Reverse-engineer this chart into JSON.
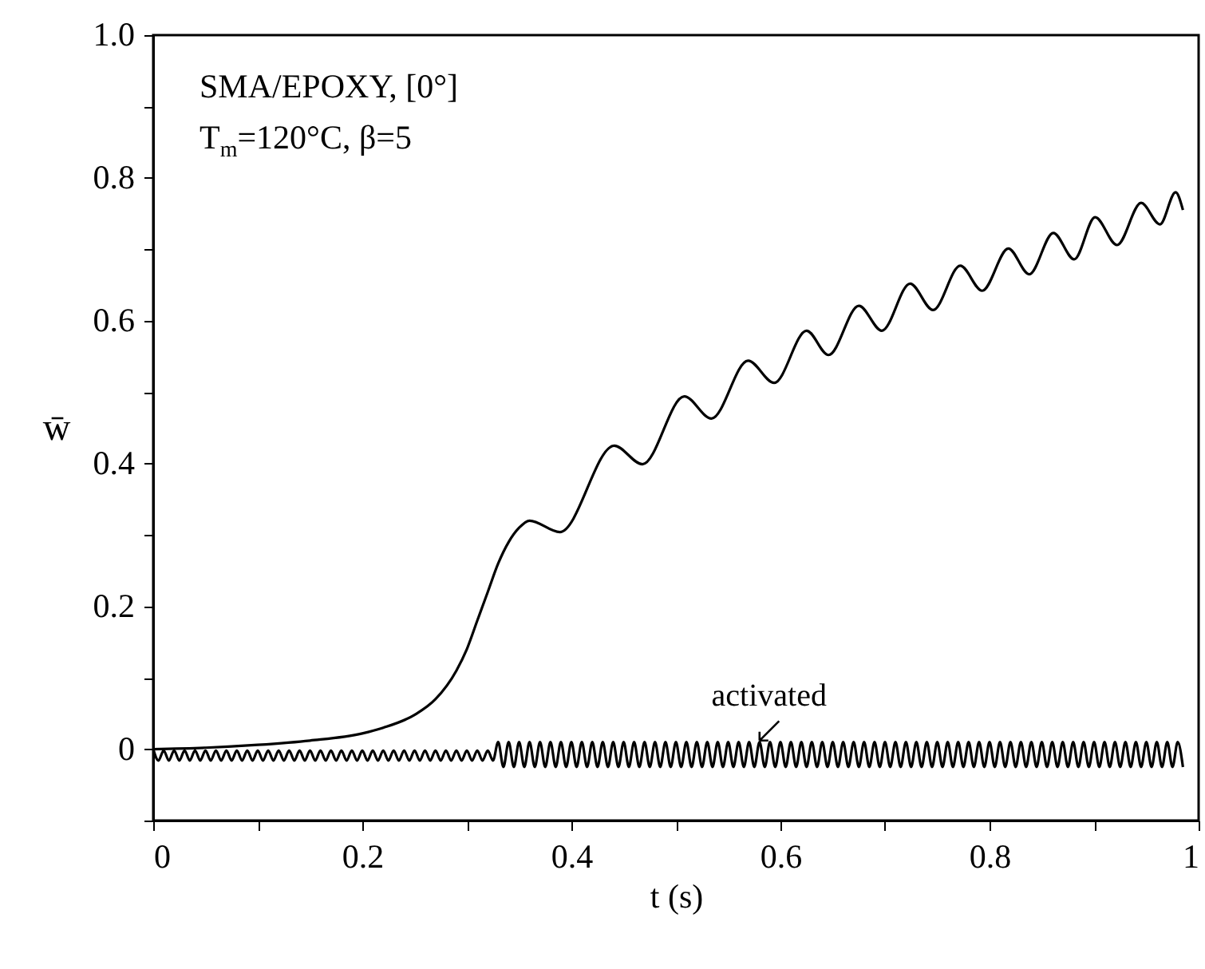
{
  "chart_data": {
    "type": "line",
    "title": "SMA/EPOXY,  [0°]",
    "subtitle": "T$_{m}$=120°C,  β=5",
    "xlabel": "t (s)",
    "ylabel": "w̄",
    "xlim": [
      0,
      1
    ],
    "ylim": [
      -0.1,
      1.0
    ],
    "xticks": [
      0,
      {
        "value": 0.1,
        "label": null
      },
      0.2,
      {
        "value": 0.3,
        "label": null
      },
      0.4,
      {
        "value": 0.5,
        "label": null
      },
      0.6,
      {
        "value": 0.7,
        "label": null
      },
      0.8,
      {
        "value": 0.9,
        "label": null
      },
      1
    ],
    "yticks": [
      {
        "value": -0.1,
        "label": null
      },
      0,
      {
        "value": 0.1,
        "label": null
      },
      0.2,
      {
        "value": 0.3,
        "label": null
      },
      0.4,
      {
        "value": 0.5,
        "label": null
      },
      0.6,
      {
        "value": 0.7,
        "label": null
      },
      0.8,
      {
        "value": 0.9,
        "label": null
      },
      {
        "value": 1.0,
        "label": "1.0"
      }
    ],
    "annotations": [
      {
        "text": "activated",
        "x": 0.58,
        "y": 0.012
      }
    ],
    "series": [
      {
        "color": "#000000",
        "x": [
          0,
          0.05,
          0.1,
          0.15,
          0.2,
          0.22,
          0.25,
          0.27,
          0.29,
          0.3,
          0.31,
          0.32,
          0.33,
          0.34,
          0.35,
          0.36,
          0.389,
          0.441,
          0.468,
          0.508,
          0.534,
          0.569,
          0.594,
          0.625,
          0.646,
          0.675,
          0.697,
          0.724,
          0.746,
          0.772,
          0.793,
          0.818,
          0.838,
          0.861,
          0.881,
          0.901,
          0.922,
          0.945,
          0.963,
          0.978,
          0.985
        ],
        "values": [
          0,
          0.002,
          0.006,
          0.012,
          0.022,
          0.03,
          0.048,
          0.07,
          0.11,
          0.14,
          0.18,
          0.22,
          0.26,
          0.29,
          0.31,
          0.32,
          0.304,
          0.425,
          0.399,
          0.494,
          0.463,
          0.544,
          0.513,
          0.586,
          0.552,
          0.621,
          0.586,
          0.652,
          0.615,
          0.677,
          0.642,
          0.701,
          0.665,
          0.723,
          0.686,
          0.745,
          0.706,
          0.765,
          0.735,
          0.78,
          0.755
        ]
      },
      {
        "color": "#000000",
        "x": [
          0,
          0.005,
          0.01,
          0.015,
          0.02,
          0.025,
          0.03,
          0.035,
          0.04,
          0.045,
          0.05,
          0.055,
          0.06,
          0.065,
          0.07,
          0.075,
          0.08,
          0.085,
          0.09,
          0.095,
          0.1,
          0.105,
          0.11,
          0.115,
          0.12,
          0.125,
          0.13,
          0.135,
          0.14,
          0.145,
          0.15,
          0.155,
          0.16,
          0.165,
          0.17,
          0.175,
          0.18,
          0.185,
          0.19,
          0.195,
          0.2,
          0.205,
          0.21,
          0.215,
          0.22,
          0.225,
          0.23,
          0.235,
          0.24,
          0.245,
          0.25,
          0.255,
          0.26,
          0.265,
          0.27,
          0.275,
          0.28,
          0.285,
          0.29,
          0.295,
          0.3,
          0.305,
          0.31,
          0.315,
          0.32,
          0.325,
          0.33,
          0.335,
          0.34,
          0.345,
          0.35,
          0.355,
          0.36,
          0.365,
          0.37,
          0.375,
          0.38,
          0.385,
          0.39,
          0.395,
          0.4,
          0.405,
          0.41,
          0.415,
          0.42,
          0.425,
          0.43,
          0.435,
          0.44,
          0.445,
          0.45,
          0.455,
          0.46,
          0.465,
          0.47,
          0.475,
          0.48,
          0.485,
          0.49,
          0.495,
          0.5,
          0.505,
          0.51,
          0.515,
          0.52,
          0.525,
          0.53,
          0.535,
          0.54,
          0.545,
          0.55,
          0.555,
          0.56,
          0.565,
          0.57,
          0.575,
          0.58,
          0.585,
          0.59,
          0.595,
          0.6,
          0.605,
          0.61,
          0.615,
          0.62,
          0.625,
          0.63,
          0.635,
          0.64,
          0.645,
          0.65,
          0.655,
          0.66,
          0.665,
          0.67,
          0.675,
          0.68,
          0.685,
          0.69,
          0.695,
          0.7,
          0.705,
          0.71,
          0.715,
          0.72,
          0.725,
          0.73,
          0.735,
          0.74,
          0.745,
          0.75,
          0.755,
          0.76,
          0.765,
          0.77,
          0.775,
          0.78,
          0.785,
          0.79,
          0.795,
          0.8,
          0.805,
          0.81,
          0.815,
          0.82,
          0.825,
          0.83,
          0.835,
          0.84,
          0.845,
          0.85,
          0.855,
          0.86,
          0.865,
          0.87,
          0.875,
          0.88,
          0.885,
          0.89,
          0.895,
          0.9,
          0.905,
          0.91,
          0.915,
          0.92,
          0.925,
          0.93,
          0.935,
          0.94,
          0.945,
          0.95,
          0.955,
          0.96,
          0.965,
          0.97,
          0.975,
          0.98,
          0.985
        ],
        "values": [
          0,
          -0.016,
          -0.002,
          -0.016,
          -0.002,
          -0.016,
          -0.002,
          -0.016,
          -0.002,
          -0.016,
          -0.002,
          -0.016,
          -0.002,
          -0.016,
          -0.002,
          -0.016,
          -0.002,
          -0.016,
          -0.002,
          -0.016,
          -0.002,
          -0.016,
          -0.002,
          -0.016,
          -0.002,
          -0.016,
          -0.002,
          -0.016,
          -0.002,
          -0.016,
          -0.002,
          -0.016,
          -0.002,
          -0.016,
          -0.002,
          -0.016,
          -0.002,
          -0.016,
          -0.002,
          -0.016,
          -0.002,
          -0.016,
          -0.002,
          -0.016,
          -0.002,
          -0.016,
          -0.002,
          -0.016,
          -0.002,
          -0.016,
          -0.002,
          -0.016,
          -0.002,
          -0.016,
          -0.002,
          -0.016,
          -0.002,
          -0.016,
          -0.002,
          -0.016,
          -0.002,
          -0.016,
          -0.002,
          -0.016,
          -0.002,
          -0.016,
          0.01,
          -0.025,
          0.01,
          -0.025,
          0.01,
          -0.025,
          0.01,
          -0.025,
          0.01,
          -0.025,
          0.01,
          -0.025,
          0.01,
          -0.025,
          0.01,
          -0.025,
          0.01,
          -0.025,
          0.01,
          -0.025,
          0.01,
          -0.025,
          0.01,
          -0.025,
          0.01,
          -0.025,
          0.01,
          -0.025,
          0.01,
          -0.025,
          0.01,
          -0.025,
          0.01,
          -0.025,
          0.01,
          -0.025,
          0.01,
          -0.025,
          0.01,
          -0.025,
          0.01,
          -0.025,
          0.01,
          -0.025,
          0.01,
          -0.025,
          0.01,
          -0.025,
          0.01,
          -0.025,
          0.01,
          -0.025,
          0.01,
          -0.025,
          0.01,
          -0.025,
          0.01,
          -0.025,
          0.01,
          -0.025,
          0.01,
          -0.025,
          0.01,
          -0.025,
          0.01,
          -0.025,
          0.01,
          -0.025,
          0.01,
          -0.025,
          0.01,
          -0.025,
          0.01,
          -0.025,
          0.01,
          -0.025,
          0.01,
          -0.025,
          0.01,
          -0.025,
          0.01,
          -0.025,
          0.01,
          -0.025,
          0.01,
          -0.025,
          0.01,
          -0.025,
          0.01,
          -0.025,
          0.01,
          -0.025,
          0.01,
          -0.025,
          0.01,
          -0.025,
          0.01,
          -0.025,
          0.01,
          -0.025,
          0.01,
          -0.025,
          0.01,
          -0.025,
          0.01,
          -0.025,
          0.01,
          -0.025,
          0.01,
          -0.025,
          0.01,
          -0.025,
          0.01,
          -0.025,
          0.01,
          -0.025,
          0.01,
          -0.025,
          0.01,
          -0.025,
          0.01,
          -0.025,
          0.01,
          -0.025,
          0.01,
          -0.025,
          0.01,
          -0.025,
          0.01,
          -0.025,
          0.01,
          -0.025
        ]
      }
    ]
  }
}
